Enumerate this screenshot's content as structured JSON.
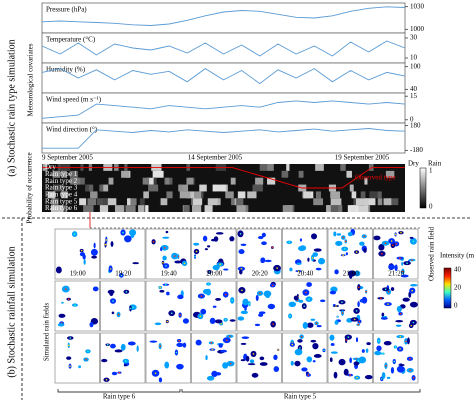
{
  "sections": [
    "(a) Stochastic rain type simulation",
    "(b) Stochastic rainfall simulation"
  ],
  "covariates_label": "Meteorological covariates",
  "chart_data": [
    {
      "type": "line",
      "title": "Pressure (hPa)",
      "color": "#5b9bd5",
      "ylim": [
        995,
        1035
      ],
      "yticks": [
        1000,
        1030
      ],
      "values": [
        1010,
        1011,
        1010,
        1009,
        1008,
        1006,
        1005,
        1007,
        1012,
        1018,
        1023,
        1025,
        1024,
        1020,
        1016,
        1015,
        1018,
        1024,
        1028,
        1030,
        1029
      ]
    },
    {
      "type": "line",
      "title": "Temperature (°C)",
      "color": "#5b9bd5",
      "ylim": [
        5,
        35
      ],
      "yticks": [
        10,
        30
      ],
      "values": [
        22,
        14,
        25,
        13,
        24,
        20,
        18,
        22,
        15,
        25,
        14,
        23,
        12,
        24,
        14,
        22,
        12,
        26,
        16,
        27,
        20
      ]
    },
    {
      "type": "line",
      "title": "Humidity (%)",
      "color": "#5b9bd5",
      "ylim": [
        30,
        110
      ],
      "yticks": [
        40,
        100
      ],
      "values": [
        85,
        95,
        70,
        92,
        65,
        90,
        80,
        88,
        60,
        95,
        65,
        90,
        55,
        92,
        70,
        95,
        60,
        90,
        65,
        85,
        75
      ]
    },
    {
      "type": "line",
      "title": "Wind speed (m s⁻¹)",
      "color": "#5b9bd5",
      "ylim": [
        -2,
        17
      ],
      "yticks": [
        0,
        15
      ],
      "values": [
        1,
        2,
        3,
        10,
        9,
        8,
        7,
        9,
        8,
        7,
        8,
        9,
        8,
        11,
        12,
        11,
        12,
        11,
        10,
        11,
        10
      ]
    },
    {
      "type": "line",
      "title": "Wind direction (°)",
      "color": "#5b9bd5",
      "ylim": [
        -220,
        220
      ],
      "yticks": [
        -180,
        180
      ],
      "values": [
        -150,
        -150,
        -150,
        120,
        100,
        80,
        110,
        90,
        120,
        100,
        80,
        100,
        120,
        90,
        110,
        130,
        100,
        120,
        140,
        110,
        100
      ]
    }
  ],
  "dates": [
    "9 September 2005",
    "14 September 2005",
    "19 September 2005"
  ],
  "probability": {
    "label": "Probability of occurrence",
    "rows": [
      "Dry",
      "Rain type 1",
      "Rain type 2",
      "Rain type 3",
      "Rain type 4",
      "Rain type 5",
      "Rain type 6"
    ],
    "legend": [
      "Dry",
      "Rain"
    ],
    "ticks": [
      1,
      0
    ],
    "annotation": "Observed type"
  },
  "rain_fields": {
    "observed_label": "Observed rain field",
    "simulated_label": "Simulated rain fields",
    "times": [
      "19:00",
      "19:20",
      "19:40",
      "20:00",
      "20:20",
      "20:40",
      "21:00",
      "21:20"
    ],
    "rain_types": [
      "Rain type 6",
      "Rain type 5"
    ]
  },
  "intensity": {
    "title": "Intensity (mm h⁻¹)",
    "ticks": [
      40,
      20,
      0
    ]
  }
}
